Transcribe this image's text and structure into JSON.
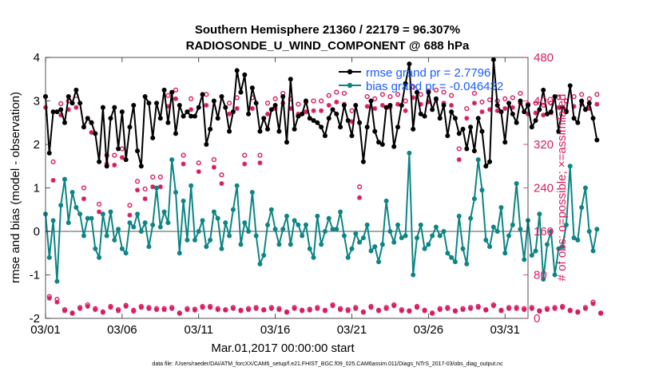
{
  "chart_data": {
    "type": "line",
    "title": "Southern Hemisphere 21360 / 22179 = 96.307%",
    "subtitle": "RADIOSONDE_U_WIND_COMPONENT @ 688 hPa",
    "xlabel": "Mar.01,2017 00:00:00 start",
    "ylabel": "rmse and bias (model - observation)",
    "ylabel_right": "# of obs: o=possible; ×=assimilated",
    "xlim": [
      0,
      31.5
    ],
    "ylim": [
      -2,
      4
    ],
    "ylim_right": [
      0,
      480
    ],
    "x_ticks": [
      0,
      5,
      10,
      15,
      20,
      25,
      30
    ],
    "x_tick_labels": [
      "03/01",
      "03/06",
      "03/11",
      "03/16",
      "03/21",
      "03/26",
      "03/31"
    ],
    "y_ticks": [
      -2,
      -1,
      0,
      1,
      2,
      3,
      4
    ],
    "y_ticks_right": [
      0,
      80,
      160,
      240,
      320,
      400,
      480
    ],
    "colors": {
      "rmse": "#000000",
      "bias": "#0d8585",
      "obs": "#d81b60",
      "legend_text": "#1a5cff",
      "zero_line": "#a8a8a8"
    },
    "legend": [
      {
        "label": "rmse grand pr = 2.7796",
        "series": "rmse"
      },
      {
        "label": "bias grand pr = -0.046432",
        "series": "bias"
      }
    ],
    "series": [
      {
        "name": "rmse",
        "axis": "left",
        "x_start": 0.0,
        "x_step": 0.25,
        "values": [
          3.1,
          1.8,
          2.75,
          2.75,
          2.8,
          2.5,
          3.1,
          2.95,
          3.25,
          2.95,
          2.4,
          2.6,
          2.5,
          2.25,
          1.6,
          2.85,
          1.5,
          2.6,
          2.85,
          1.9,
          2.75,
          1.65,
          2.4,
          2.9,
          1.85,
          1.5,
          3.1,
          2.95,
          2.15,
          2.95,
          2.6,
          3.25,
          2.5,
          3.2,
          2.25,
          2.9,
          2.65,
          2.75,
          2.65,
          2.65,
          2.85,
          3.15,
          2.0,
          2.35,
          3.0,
          2.6,
          3.1,
          2.85,
          2.3,
          2.75,
          3.7,
          3.2,
          3.6,
          2.7,
          3.3,
          2.95,
          2.3,
          2.6,
          2.35,
          2.8,
          2.9,
          2.3,
          3.1,
          2.05,
          3.5,
          2.35,
          2.65,
          2.7,
          3.0,
          2.6,
          2.55,
          2.5,
          2.4,
          2.2,
          2.6,
          2.8,
          2.7,
          2.4,
          2.9,
          2.55,
          2.2,
          2.9,
          2.5,
          1.6,
          2.4,
          3.0,
          2.3,
          2.05,
          2.0,
          2.85,
          2.9,
          1.95,
          2.4,
          2.9,
          3.4,
          3.85,
          2.35,
          3.2,
          2.7,
          2.65,
          3.2,
          2.8,
          3.05,
          2.6,
          2.9,
          2.2,
          2.75,
          2.6,
          2.25,
          2.35,
          1.9,
          2.4,
          1.85,
          2.6,
          2.3,
          1.5,
          1.6,
          3.95,
          2.9,
          2.75,
          2.05,
          2.95,
          2.7,
          2.5,
          3.0,
          2.75,
          2.9,
          2.4,
          2.55,
          2.8,
          3.25,
          2.7,
          2.75,
          3.1,
          2.3,
          2.85,
          2.75,
          3.35,
          2.6,
          2.5,
          3.0,
          2.8,
          2.95,
          2.6,
          2.1
        ]
      },
      {
        "name": "bias",
        "axis": "left",
        "x_start": 0.0,
        "x_step": 0.25,
        "values": [
          0.4,
          -0.6,
          0.25,
          -1.15,
          0.6,
          1.2,
          0.2,
          0.9,
          0.55,
          0.4,
          -0.1,
          0.3,
          0.3,
          -0.4,
          -0.6,
          0.4,
          -0.1,
          0.45,
          -0.2,
          0.05,
          -0.4,
          -0.5,
          0.2,
          0.1,
          0.4,
          0.0,
          0.2,
          -0.35,
          0.15,
          1.0,
          0.1,
          0.45,
          0.2,
          1.65,
          0.9,
          -0.5,
          0.7,
          -0.2,
          1.05,
          -0.2,
          0.0,
          0.25,
          -0.35,
          -0.2,
          0.45,
          0.3,
          -0.4,
          0.2,
          -0.1,
          0.5,
          1.05,
          -0.3,
          0.2,
          0.0,
          0.9,
          -0.1,
          -0.75,
          -0.55,
          0.15,
          0.5,
          0.05,
          -0.3,
          0.05,
          0.35,
          -0.3,
          0.25,
          0.15,
          -0.1,
          0.15,
          -0.4,
          -0.6,
          0.35,
          -0.3,
          0.0,
          0.3,
          0.05,
          0.05,
          0.45,
          -0.1,
          -0.6,
          -0.4,
          -0.05,
          -0.25,
          -0.15,
          0.15,
          -0.45,
          -0.35,
          -0.7,
          -0.3,
          0.7,
          0.0,
          -0.25,
          0.15,
          -0.15,
          -0.1,
          1.8,
          -1.0,
          -0.15,
          0.15,
          -0.4,
          -0.3,
          -0.1,
          0.1,
          -0.1,
          0.0,
          -0.5,
          -0.6,
          -0.7,
          0.35,
          -0.4,
          -0.75,
          0.3,
          0.75,
          1.65,
          0.95,
          -0.2,
          -0.35,
          0.1,
          0.0,
          0.55,
          -0.5,
          -0.1,
          0.15,
          1.1,
          0.05,
          -0.65,
          0.25,
          -0.55,
          -0.45,
          0.4,
          -1.1,
          -0.3,
          0.0,
          -1.0,
          -0.4,
          -0.35,
          0.15,
          1.5,
          -0.15,
          -0.2,
          0.55,
          1.0,
          0.0,
          -0.45,
          0.05
        ]
      },
      {
        "name": "possible",
        "axis": "right",
        "marker": "o",
        "x_start": 0.0,
        "x_step": 0.25,
        "values": [
          408,
          40,
          288,
          35,
          395,
          16,
          400,
          10,
          410,
          20,
          240,
          25,
          360,
          18,
          210,
          12,
          300,
          22,
          300,
          16,
          312,
          24,
          208,
          15,
          252,
          22,
          238,
          20,
          260,
          18,
          260,
          18,
          410,
          20,
          420,
          10,
          300,
          18,
          404,
          17,
          286,
          22,
          412,
          22,
          292,
          18,
          264,
          16,
          396,
          20,
          406,
          15,
          300,
          18,
          406,
          20,
          300,
          16,
          396,
          20,
          404,
          18,
          414,
          12,
          404,
          20,
          394,
          15,
          398,
          17,
          400,
          20,
          400,
          15,
          410,
          25,
          416,
          18,
          414,
          16,
          382,
          20,
          242,
          12,
          408,
          22,
          404,
          15,
          412,
          20,
          408,
          25,
          412,
          16,
          400,
          14,
          426,
          22,
          412,
          15,
          418,
          10,
          420,
          18,
          416,
          20,
          410,
          14,
          312,
          18,
          386,
          20,
          414,
          22,
          398,
          16,
          402,
          25,
          400,
          15,
          404,
          20,
          406,
          20,
          414,
          18,
          394,
          20,
          396,
          14,
          392,
          18,
          396,
          20,
          406,
          22,
          400,
          15,
          408,
          12,
          412,
          20,
          404,
          30,
          412,
          10
        ]
      },
      {
        "name": "assimilated",
        "axis": "right",
        "marker": "x",
        "x_start": 0.0,
        "x_step": 0.25,
        "values": [
          388,
          37,
          254,
          30,
          374,
          14,
          384,
          9,
          388,
          18,
          220,
          22,
          342,
          16,
          196,
          11,
          284,
          20,
          282,
          14,
          296,
          22,
          190,
          13,
          236,
          20,
          220,
          18,
          242,
          16,
          242,
          16,
          390,
          18,
          404,
          9,
          284,
          16,
          384,
          15,
          270,
          20,
          392,
          20,
          278,
          16,
          248,
          15,
          376,
          18,
          386,
          14,
          284,
          16,
          386,
          18,
          286,
          15,
          376,
          18,
          386,
          16,
          396,
          11,
          386,
          18,
          376,
          14,
          380,
          15,
          382,
          18,
          382,
          14,
          392,
          23,
          398,
          16,
          394,
          14,
          362,
          18,
          222,
          11,
          390,
          20,
          386,
          14,
          392,
          18,
          388,
          23,
          394,
          14,
          382,
          13,
          406,
          20,
          394,
          14,
          398,
          9,
          402,
          16,
          396,
          18,
          392,
          13,
          292,
          16,
          368,
          18,
          396,
          20,
          380,
          15,
          384,
          23,
          382,
          14,
          386,
          18,
          388,
          18,
          396,
          16,
          376,
          18,
          378,
          13,
          374,
          16,
          378,
          18,
          388,
          20,
          382,
          14,
          390,
          11,
          394,
          18,
          386,
          27,
          394,
          9
        ]
      }
    ]
  },
  "footer": "data file: /Users/raeder/DAI/ATM_forcXX/CAM6_setup/f.e21.FHIST_BGC.f09_025.CAM6assim.011/Diags_NTrS_2017-03/obs_diag_output.nc"
}
